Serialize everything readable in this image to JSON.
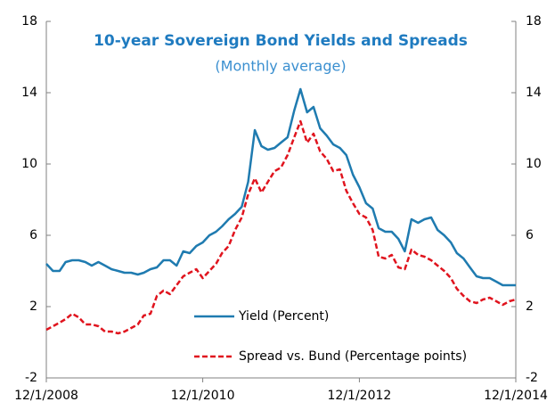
{
  "chart_data": {
    "type": "line",
    "title": "10-year Sovereign Bond Yields and Spreads",
    "subtitle": "(Monthly average)",
    "x": [
      "12/1/2008",
      "1/1/2009",
      "2/1/2009",
      "3/1/2009",
      "4/1/2009",
      "5/1/2009",
      "6/1/2009",
      "7/1/2009",
      "8/1/2009",
      "9/1/2009",
      "10/1/2009",
      "11/1/2009",
      "12/1/2009",
      "1/1/2010",
      "2/1/2010",
      "3/1/2010",
      "4/1/2010",
      "5/1/2010",
      "6/1/2010",
      "7/1/2010",
      "8/1/2010",
      "9/1/2010",
      "10/1/2010",
      "11/1/2010",
      "12/1/2010",
      "1/1/2011",
      "2/1/2011",
      "3/1/2011",
      "4/1/2011",
      "5/1/2011",
      "6/1/2011",
      "7/1/2011",
      "8/1/2011",
      "9/1/2011",
      "10/1/2011",
      "11/1/2011",
      "12/1/2011",
      "1/1/2012",
      "2/1/2012",
      "3/1/2012",
      "4/1/2012",
      "5/1/2012",
      "6/1/2012",
      "7/1/2012",
      "8/1/2012",
      "9/1/2012",
      "10/1/2012",
      "11/1/2012",
      "12/1/2012",
      "1/1/2013",
      "2/1/2013",
      "3/1/2013",
      "4/1/2013",
      "5/1/2013",
      "6/1/2013",
      "7/1/2013",
      "8/1/2013",
      "9/1/2013",
      "10/1/2013",
      "11/1/2013",
      "12/1/2013",
      "1/1/2014",
      "2/1/2014",
      "3/1/2014",
      "4/1/2014",
      "5/1/2014",
      "6/1/2014",
      "7/1/2014",
      "8/1/2014",
      "9/1/2014",
      "10/1/2014",
      "11/1/2014",
      "12/1/2014"
    ],
    "series": [
      {
        "name": "Yield (Percent)",
        "color": "#1f7bb0",
        "dash": false,
        "values": [
          4.4,
          4.0,
          4.0,
          4.5,
          4.6,
          4.6,
          4.5,
          4.3,
          4.5,
          4.3,
          4.1,
          4.0,
          3.9,
          3.9,
          3.8,
          3.9,
          4.1,
          4.2,
          4.6,
          4.6,
          4.3,
          5.1,
          5.0,
          5.4,
          5.6,
          6.0,
          6.2,
          6.5,
          6.9,
          7.2,
          7.6,
          9.0,
          11.9,
          11.0,
          10.8,
          10.9,
          11.2,
          11.5,
          13.0,
          14.2,
          12.9,
          13.2,
          12.0,
          11.6,
          11.1,
          10.9,
          10.5,
          9.4,
          8.7,
          7.8,
          7.5,
          6.4,
          6.2,
          6.2,
          5.8,
          5.1,
          6.9,
          6.7,
          6.9,
          7.0,
          6.3,
          6.0,
          5.6,
          5.0,
          4.7,
          4.2,
          3.7,
          3.6,
          3.6,
          3.4,
          3.2,
          3.2,
          3.2
        ]
      },
      {
        "name": "Spread vs. Bund  (Percentage points)",
        "color": "#e0141e",
        "dash": true,
        "values": [
          0.7,
          0.9,
          1.1,
          1.3,
          1.6,
          1.4,
          1.0,
          1.0,
          0.9,
          0.6,
          0.6,
          0.5,
          0.6,
          0.8,
          1.0,
          1.5,
          1.6,
          2.6,
          2.9,
          2.7,
          3.2,
          3.7,
          3.9,
          4.1,
          3.6,
          4.0,
          4.4,
          5.0,
          5.4,
          6.3,
          7.0,
          8.3,
          9.2,
          8.4,
          9.0,
          9.6,
          9.8,
          10.5,
          11.5,
          12.4,
          11.2,
          11.7,
          10.7,
          10.3,
          9.6,
          9.7,
          8.5,
          7.8,
          7.2,
          7.0,
          6.3,
          4.8,
          4.7,
          4.9,
          4.2,
          4.1,
          5.2,
          4.9,
          4.8,
          4.6,
          4.3,
          4.0,
          3.6,
          3.0,
          2.6,
          2.3,
          2.2,
          2.4,
          2.5,
          2.3,
          2.1,
          2.3,
          2.4
        ]
      }
    ],
    "xlim": [
      "12/1/2008",
      "12/1/2014"
    ],
    "xticks": [
      "12/1/2008",
      "12/1/2010",
      "12/1/2012",
      "12/1/2014"
    ],
    "ylim": [
      -2,
      18
    ],
    "yticks": [
      -2,
      2,
      6,
      10,
      14,
      18
    ],
    "y2lim": [
      -2,
      18
    ],
    "y2ticks": [
      -2,
      2,
      6,
      10,
      14,
      18
    ],
    "legend": "lower center",
    "grid": false
  }
}
